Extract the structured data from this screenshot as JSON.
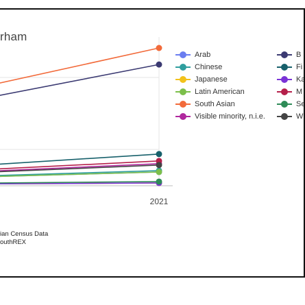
{
  "title_fragment": "rham",
  "note_lines": [
    "ian Census Data",
    "outhREX"
  ],
  "chart_data": {
    "type": "line",
    "title": "rham",
    "x": [
      "2021"
    ],
    "x_tick_label": "2021",
    "grid": true,
    "legend_placement": "right",
    "series": [
      {
        "name": "Arab",
        "color": "#6a7df0",
        "end_level": 0.1
      },
      {
        "name": "Chinese",
        "color": "#2f9e9e",
        "end_level": 0.11
      },
      {
        "name": "Japanese",
        "color": "#f2c21b",
        "end_level": 0.02
      },
      {
        "name": "Latin American",
        "color": "#7cbf4a",
        "end_level": 0.1
      },
      {
        "name": "South Asian",
        "color": "#f26a3a",
        "end_level": 1.0
      },
      {
        "name": "Visible minority, n.i.e.",
        "color": "#b0289e",
        "end_level": 0.16
      },
      {
        "name": "B",
        "color": "#3b3a72",
        "end_level": 0.88
      },
      {
        "name": "Fi",
        "color": "#17606b",
        "end_level": 0.23
      },
      {
        "name": "Ka",
        "color": "#7a33d6",
        "end_level": 0.02
      },
      {
        "name": "M",
        "color": "#b51f4a",
        "end_level": 0.18
      },
      {
        "name": "Se",
        "color": "#2e8b57",
        "end_level": 0.03
      },
      {
        "name": "W",
        "color": "#444444",
        "end_level": 0.15
      }
    ]
  }
}
